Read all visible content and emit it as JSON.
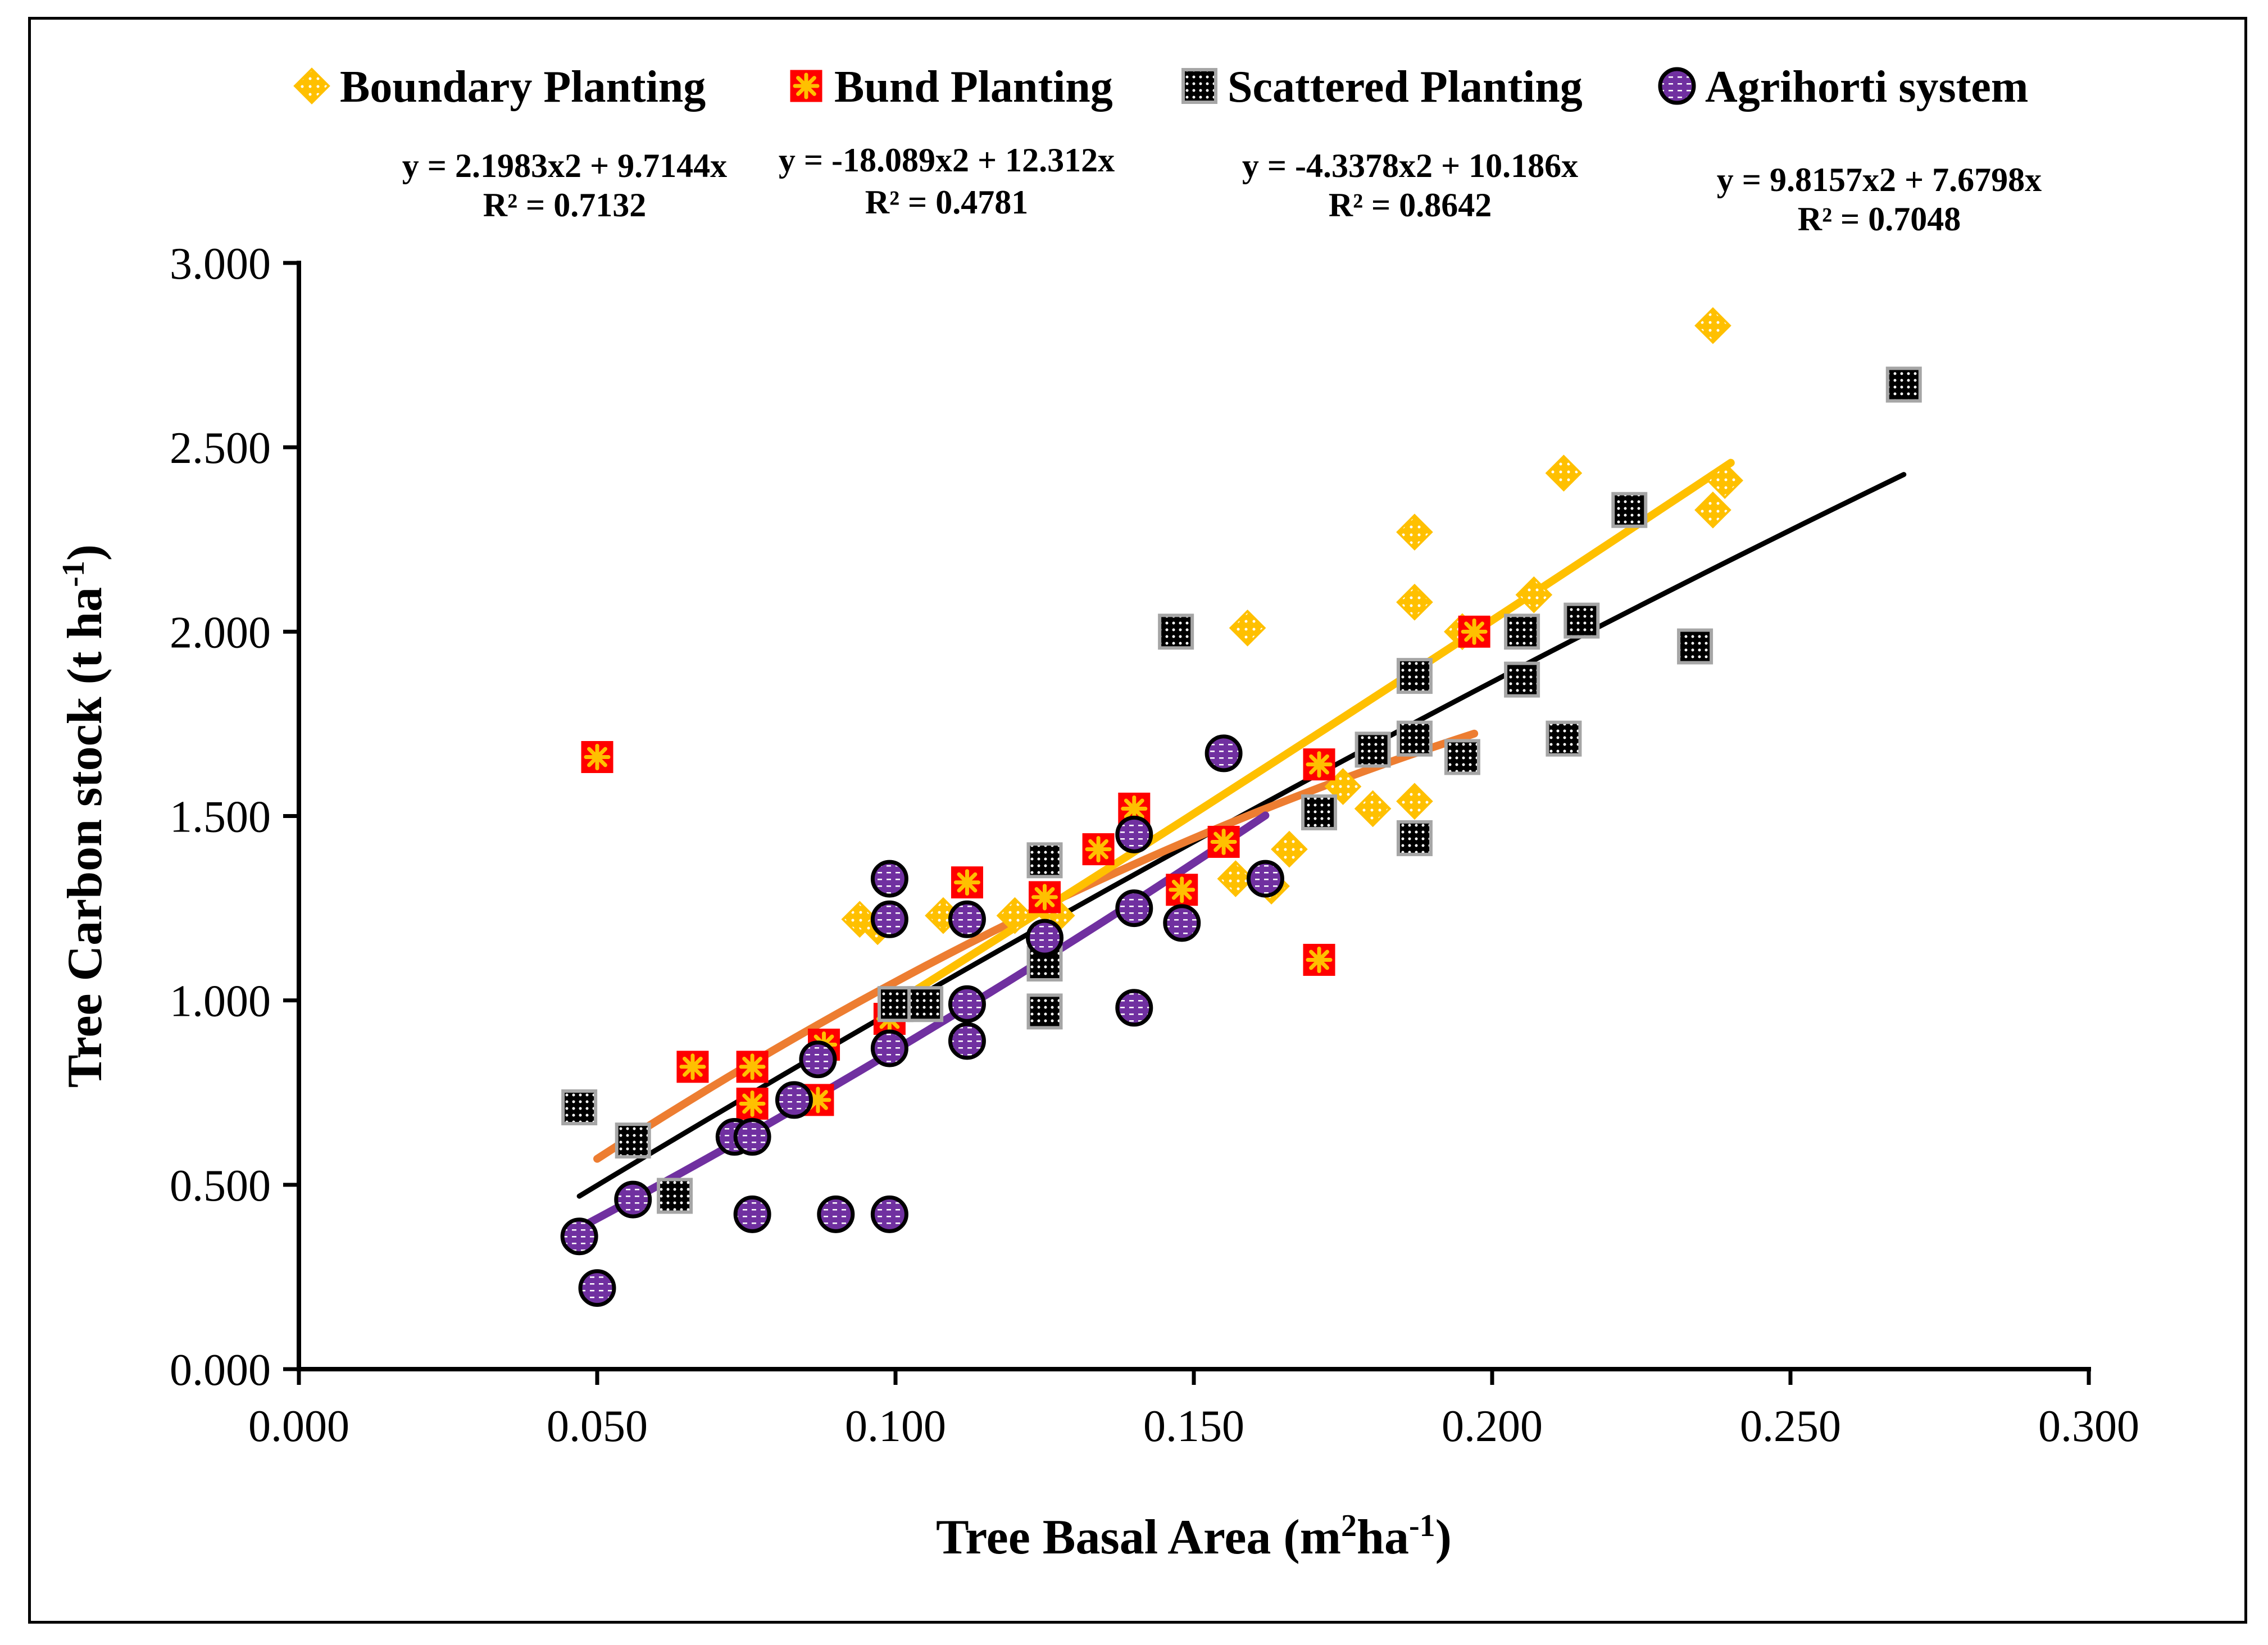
{
  "chart_data": {
    "type": "scatter",
    "xlabel": {
      "text": "Tree Basal Area (m",
      "sup1": "2",
      "mid": "ha",
      "sup2": "-1",
      "end": ")"
    },
    "ylabel": {
      "text": "Tree Carbon stock (t ha",
      "sup": "-1",
      "end": ")"
    },
    "xlim": [
      0,
      0.3
    ],
    "ylim": [
      0,
      3
    ],
    "xticks": [
      "0.000",
      "0.050",
      "0.100",
      "0.150",
      "0.200",
      "0.250",
      "0.300"
    ],
    "yticks": [
      "0.000",
      "0.500",
      "1.000",
      "1.500",
      "2.000",
      "2.500",
      "3.000"
    ],
    "series": [
      {
        "name": "Boundary Planting",
        "marker": "diamond",
        "color": "#FFC000",
        "trend_color": "#FFC000",
        "equation": "y = 2.1983x2 + 9.7144x",
        "r2": "R² = 0.7132",
        "trend_x": [
          0.1,
          0.24
        ],
        "x": [
          0.094,
          0.097,
          0.108,
          0.12,
          0.127,
          0.157,
          0.159,
          0.163,
          0.166,
          0.175,
          0.18,
          0.187,
          0.187,
          0.187,
          0.195,
          0.207,
          0.212,
          0.237,
          0.239,
          0.237
        ],
        "y": [
          1.22,
          1.2,
          1.23,
          1.23,
          1.23,
          1.33,
          2.01,
          1.31,
          1.41,
          1.58,
          1.52,
          1.54,
          2.08,
          2.27,
          2.0,
          2.1,
          2.43,
          2.33,
          2.41,
          2.83
        ]
      },
      {
        "name": "Bund Planting",
        "marker": "square-star",
        "color": "#FF0000",
        "trend_color": "#ED7D31",
        "equation": "y = -18.089x2 + 12.312x",
        "r2": "R² = 0.4781",
        "trend_x": [
          0.05,
          0.197
        ],
        "x": [
          0.05,
          0.066,
          0.076,
          0.076,
          0.087,
          0.088,
          0.099,
          0.112,
          0.125,
          0.134,
          0.14,
          0.148,
          0.155,
          0.171,
          0.171,
          0.197
        ],
        "y": [
          1.66,
          0.82,
          0.82,
          0.72,
          0.73,
          0.88,
          0.95,
          1.32,
          1.28,
          1.41,
          1.52,
          1.3,
          1.43,
          1.64,
          1.11,
          2.0
        ]
      },
      {
        "name": "Scattered Planting",
        "marker": "square-dots",
        "color": "#000000",
        "trend_color": "#000000",
        "equation": "y = -4.3378x2 + 10.186x",
        "r2": "R² = 0.8642",
        "trend_x": [
          0.047,
          0.269
        ],
        "x": [
          0.047,
          0.056,
          0.063,
          0.1,
          0.105,
          0.125,
          0.125,
          0.125,
          0.147,
          0.171,
          0.18,
          0.187,
          0.187,
          0.187,
          0.195,
          0.205,
          0.205,
          0.212,
          0.215,
          0.223,
          0.234,
          0.269
        ],
        "y": [
          0.71,
          0.62,
          0.47,
          0.99,
          0.99,
          0.97,
          1.1,
          1.38,
          2.0,
          1.51,
          1.68,
          1.44,
          1.71,
          1.88,
          1.66,
          1.87,
          2.0,
          1.71,
          2.03,
          2.33,
          1.96,
          2.67
        ]
      },
      {
        "name": "Agrihorti system",
        "marker": "circle",
        "color": "#7030A0",
        "trend_color": "#7030A0",
        "equation": "y = 9.8157x2 + 7.6798x",
        "r2": "R² = 0.7048",
        "trend_x": [
          0.047,
          0.162
        ],
        "x": [
          0.047,
          0.05,
          0.056,
          0.073,
          0.076,
          0.076,
          0.083,
          0.087,
          0.09,
          0.099,
          0.099,
          0.099,
          0.099,
          0.112,
          0.112,
          0.112,
          0.125,
          0.14,
          0.14,
          0.14,
          0.148,
          0.155,
          0.162
        ],
        "y": [
          0.36,
          0.22,
          0.46,
          0.63,
          0.63,
          0.42,
          0.73,
          0.84,
          0.42,
          0.42,
          0.87,
          1.22,
          1.33,
          0.89,
          0.99,
          1.22,
          1.17,
          0.98,
          1.25,
          1.45,
          1.21,
          1.67,
          1.33
        ]
      }
    ]
  }
}
